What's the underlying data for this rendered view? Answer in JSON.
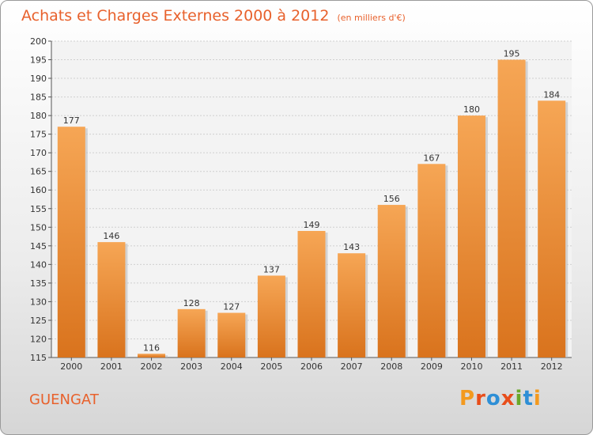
{
  "header": {
    "title": "Achats et Charges Externes 2000 à 2012",
    "subtitle": "(en milliers d'€)"
  },
  "footer": {
    "place": "GUENGAT",
    "brand": "Proxiti",
    "brand_colors": [
      "#f39a1f",
      "#e84e1b",
      "#2e8fd6",
      "#e84e1b",
      "#6aa829",
      "#2e8fd6",
      "#f39a1f"
    ]
  },
  "colors": {
    "bar_top": "#f6a655",
    "bar_bottom": "#d9731d",
    "text_accent": "#e8612c"
  },
  "chart_data": {
    "type": "bar",
    "categories": [
      "2000",
      "2001",
      "2002",
      "2003",
      "2004",
      "2005",
      "2006",
      "2007",
      "2008",
      "2009",
      "2010",
      "2011",
      "2012"
    ],
    "values": [
      177,
      146,
      116,
      128,
      127,
      137,
      149,
      143,
      156,
      167,
      180,
      195,
      184
    ],
    "ylim": [
      115,
      200
    ],
    "yticks": [
      115,
      120,
      125,
      130,
      135,
      140,
      145,
      150,
      155,
      160,
      165,
      170,
      175,
      180,
      185,
      190,
      195,
      200
    ],
    "grid": true,
    "legend": "none"
  }
}
